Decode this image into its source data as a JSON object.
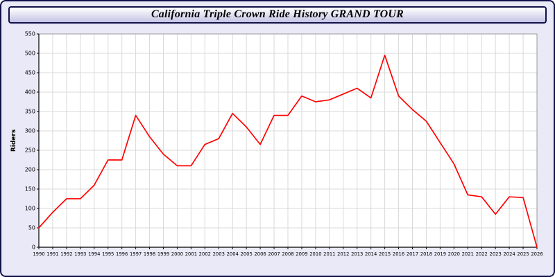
{
  "title": "California Triple Crown Ride History GRAND TOUR",
  "colors": {
    "page_background": "#e9e9f7",
    "page_border": "#10104a",
    "titlebar_gradient_top": "#ffffff",
    "titlebar_gradient_bottom": "#c4c4e6",
    "plot_background": "#ffffff",
    "gridline": "#d9d9d9",
    "frame": "#9a9a9a",
    "axis": "#000000",
    "tick_label": "#000000",
    "line": "#ff0000"
  },
  "chart_data": {
    "type": "line",
    "title": "California Triple Crown Ride History GRAND TOUR",
    "xlabel": "",
    "ylabel": "Riders",
    "ylim": [
      0,
      550
    ],
    "ytick_step": 50,
    "grid": true,
    "legend": "none",
    "line_color": "#ff0000",
    "categories": [
      1990,
      1991,
      1992,
      1993,
      1994,
      1995,
      1996,
      1997,
      1998,
      1999,
      2000,
      2001,
      2002,
      2003,
      2004,
      2005,
      2006,
      2007,
      2008,
      2009,
      2010,
      2011,
      2012,
      2013,
      2014,
      2015,
      2016,
      2017,
      2018,
      2019,
      2020,
      2021,
      2022,
      2023,
      2024,
      2025,
      2026
    ],
    "values": [
      50,
      90,
      125,
      125,
      160,
      225,
      225,
      340,
      285,
      240,
      210,
      210,
      265,
      280,
      345,
      310,
      265,
      340,
      340,
      390,
      375,
      380,
      395,
      410,
      385,
      495,
      390,
      355,
      325,
      270,
      215,
      135,
      130,
      85,
      130,
      128,
      0
    ]
  }
}
